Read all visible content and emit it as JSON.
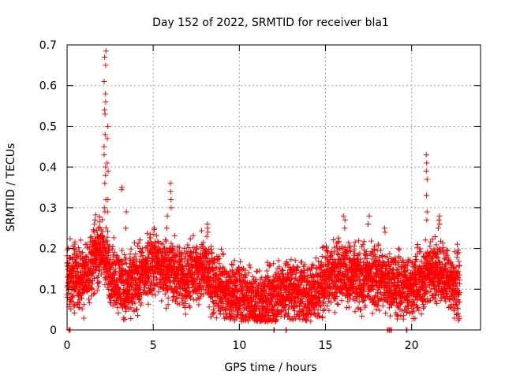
{
  "chart_data": {
    "type": "scatter",
    "title": "Day 152 of 2022, SRMTID for receiver bla1",
    "xlabel": "GPS time / hours",
    "ylabel": "SRMTID / TECUs",
    "xlim": [
      0,
      24
    ],
    "ylim": [
      0,
      0.7
    ],
    "xticks": [
      0,
      5,
      10,
      15,
      20
    ],
    "xtick_labels": [
      "0",
      "5",
      "10",
      "15",
      "20"
    ],
    "yticks": [
      0,
      0.1,
      0.2,
      0.3,
      0.4,
      0.5,
      0.6,
      0.7
    ],
    "ytick_labels": [
      "0",
      "0.1",
      "0.2",
      "0.3",
      "0.4",
      "0.5",
      "0.6",
      "0.7"
    ],
    "grid": true,
    "marker": "+",
    "color": "#ff0000",
    "profile": [
      [
        0.0,
        0.13
      ],
      [
        0.5,
        0.125
      ],
      [
        1.0,
        0.13
      ],
      [
        1.5,
        0.17
      ],
      [
        2.0,
        0.2
      ],
      [
        2.5,
        0.14
      ],
      [
        3.0,
        0.12
      ],
      [
        3.5,
        0.1
      ],
      [
        4.0,
        0.12
      ],
      [
        4.5,
        0.14
      ],
      [
        5.0,
        0.17
      ],
      [
        5.5,
        0.15
      ],
      [
        6.0,
        0.15
      ],
      [
        6.5,
        0.13
      ],
      [
        7.0,
        0.13
      ],
      [
        7.5,
        0.14
      ],
      [
        8.0,
        0.15
      ],
      [
        8.5,
        0.12
      ],
      [
        9.0,
        0.1
      ],
      [
        9.5,
        0.09
      ],
      [
        10.0,
        0.085
      ],
      [
        10.5,
        0.07
      ],
      [
        11.0,
        0.065
      ],
      [
        11.5,
        0.07
      ],
      [
        12.0,
        0.08
      ],
      [
        12.5,
        0.1
      ],
      [
        13.0,
        0.1
      ],
      [
        13.5,
        0.095
      ],
      [
        14.0,
        0.09
      ],
      [
        14.5,
        0.1
      ],
      [
        15.0,
        0.12
      ],
      [
        15.5,
        0.14
      ],
      [
        16.0,
        0.15
      ],
      [
        16.5,
        0.13
      ],
      [
        17.0,
        0.12
      ],
      [
        17.5,
        0.13
      ],
      [
        18.0,
        0.13
      ],
      [
        18.5,
        0.12
      ],
      [
        19.0,
        0.11
      ],
      [
        19.5,
        0.11
      ],
      [
        20.0,
        0.11
      ],
      [
        20.5,
        0.12
      ],
      [
        21.0,
        0.14
      ],
      [
        21.5,
        0.15
      ],
      [
        22.0,
        0.13
      ],
      [
        22.5,
        0.11
      ],
      [
        22.8,
        0.11
      ]
    ],
    "spikes": [
      {
        "x": 2.2,
        "values": [
          0.685,
          0.67,
          0.65,
          0.61,
          0.58,
          0.56,
          0.54,
          0.53,
          0.48,
          0.45,
          0.43,
          0.4,
          0.38,
          0.36,
          0.32,
          0.3,
          0.29
        ]
      },
      {
        "x": 2.35,
        "values": [
          0.5,
          0.47,
          0.41,
          0.39,
          0.32,
          0.29
        ]
      },
      {
        "x": 1.6,
        "values": [
          0.27,
          0.26,
          0.24
        ]
      },
      {
        "x": 3.2,
        "values": [
          0.35,
          0.345
        ]
      },
      {
        "x": 3.4,
        "values": [
          0.29,
          0.25
        ]
      },
      {
        "x": 6.0,
        "values": [
          0.36,
          0.34,
          0.32,
          0.3
        ]
      },
      {
        "x": 5.8,
        "values": [
          0.28,
          0.25
        ]
      },
      {
        "x": 20.9,
        "values": [
          0.43,
          0.41,
          0.39,
          0.37,
          0.33,
          0.29,
          0.27
        ]
      },
      {
        "x": 21.6,
        "values": [
          0.28,
          0.27,
          0.26,
          0.25
        ]
      },
      {
        "x": 16.1,
        "values": [
          0.28,
          0.27,
          0.25
        ]
      },
      {
        "x": 17.5,
        "values": [
          0.28,
          0.26
        ]
      },
      {
        "x": 18.4,
        "values": [
          0.25,
          0.24
        ]
      },
      {
        "x": 8.2,
        "values": [
          0.26,
          0.25,
          0.24
        ]
      }
    ],
    "zero_points": [
      0.1,
      0.15,
      12.0,
      12.7,
      18.6,
      18.7,
      18.8,
      19.7
    ]
  }
}
